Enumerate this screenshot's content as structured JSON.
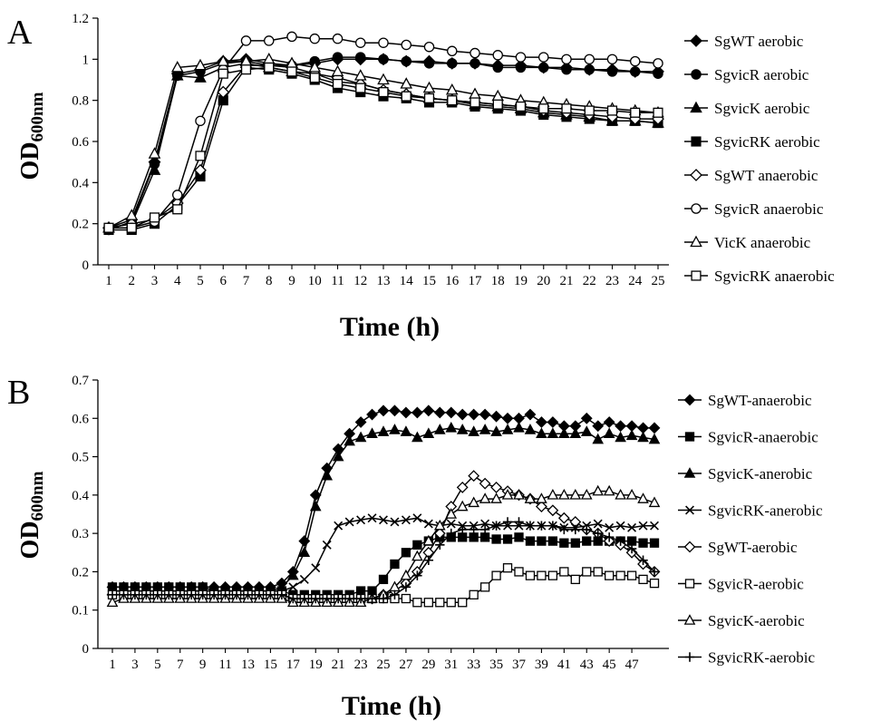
{
  "chart_data": [
    {
      "panel": "A",
      "type": "line",
      "xlabel": "Time (h)",
      "ylabel_main": "OD",
      "ylabel_sub": "600nm",
      "ylim": [
        0,
        1.2
      ],
      "yticks": [
        "0",
        "0.2",
        "0.4",
        "0.6",
        "0.8",
        "1",
        "1.2"
      ],
      "x": [
        1,
        2,
        3,
        4,
        5,
        6,
        7,
        8,
        9,
        10,
        11,
        12,
        13,
        14,
        15,
        16,
        17,
        18,
        19,
        20,
        21,
        22,
        23,
        24,
        25
      ],
      "xtick_labels": [
        "1",
        "2",
        "3",
        "4",
        "5",
        "6",
        "7",
        "8",
        "9",
        "10",
        "11",
        "12",
        "13",
        "14",
        "15",
        "16",
        "17",
        "18",
        "19",
        "20",
        "21",
        "22",
        "23",
        "24",
        "25"
      ],
      "grid": false,
      "legend_position": "right",
      "series": [
        {
          "name": "SgWT aerobic",
          "marker": "diamond-filled",
          "values": [
            0.18,
            0.22,
            0.5,
            0.93,
            0.95,
            0.99,
            1.0,
            0.98,
            0.97,
            0.98,
            1.0,
            1.0,
            1.0,
            0.99,
            0.99,
            0.98,
            0.98,
            0.97,
            0.97,
            0.96,
            0.96,
            0.95,
            0.95,
            0.94,
            0.94
          ]
        },
        {
          "name": "SgvicR aerobic",
          "marker": "circle-filled",
          "values": [
            0.17,
            0.21,
            0.49,
            0.92,
            0.94,
            0.98,
            0.99,
            0.97,
            0.97,
            0.99,
            1.01,
            1.01,
            1.0,
            0.99,
            0.98,
            0.98,
            0.98,
            0.96,
            0.96,
            0.96,
            0.95,
            0.95,
            0.94,
            0.94,
            0.93
          ]
        },
        {
          "name": "SgvicK aerobic",
          "marker": "triangle-filled",
          "values": [
            0.18,
            0.2,
            0.46,
            0.92,
            0.91,
            0.96,
            0.98,
            0.96,
            0.94,
            0.93,
            0.89,
            0.88,
            0.85,
            0.83,
            0.81,
            0.8,
            0.78,
            0.77,
            0.76,
            0.74,
            0.73,
            0.72,
            0.7,
            0.7,
            0.69
          ]
        },
        {
          "name": "SgvicRK aerobic",
          "marker": "square-filled",
          "values": [
            0.17,
            0.17,
            0.2,
            0.29,
            0.43,
            0.8,
            0.96,
            0.95,
            0.93,
            0.9,
            0.86,
            0.84,
            0.82,
            0.81,
            0.79,
            0.79,
            0.77,
            0.76,
            0.75,
            0.73,
            0.72,
            0.71,
            0.7,
            0.7,
            0.69
          ]
        },
        {
          "name": "SgWT anaerobic",
          "marker": "diamond-open",
          "values": [
            0.18,
            0.2,
            0.22,
            0.3,
            0.46,
            0.84,
            0.97,
            0.97,
            0.96,
            0.93,
            0.91,
            0.88,
            0.85,
            0.83,
            0.81,
            0.8,
            0.79,
            0.78,
            0.77,
            0.75,
            0.74,
            0.73,
            0.72,
            0.71,
            0.71
          ]
        },
        {
          "name": "SgvicR anaerobic",
          "marker": "circle-open",
          "values": [
            0.18,
            0.18,
            0.21,
            0.34,
            0.7,
            0.95,
            1.09,
            1.09,
            1.11,
            1.1,
            1.1,
            1.08,
            1.08,
            1.07,
            1.06,
            1.04,
            1.03,
            1.02,
            1.01,
            1.01,
            1.0,
            1.0,
            1.0,
            0.99,
            0.98
          ]
        },
        {
          "name": "VicK anaerobic",
          "marker": "triangle-open",
          "values": [
            0.18,
            0.24,
            0.54,
            0.96,
            0.97,
            0.99,
            0.99,
            1.0,
            0.98,
            0.96,
            0.94,
            0.92,
            0.9,
            0.88,
            0.86,
            0.85,
            0.83,
            0.82,
            0.8,
            0.79,
            0.78,
            0.77,
            0.76,
            0.75,
            0.74
          ]
        },
        {
          "name": "SgvicRK anaerobic",
          "marker": "square-open",
          "values": [
            0.18,
            0.18,
            0.23,
            0.27,
            0.53,
            0.93,
            0.95,
            0.96,
            0.94,
            0.91,
            0.88,
            0.86,
            0.84,
            0.82,
            0.81,
            0.8,
            0.79,
            0.78,
            0.77,
            0.76,
            0.76,
            0.75,
            0.75,
            0.74,
            0.74
          ]
        }
      ]
    },
    {
      "panel": "B",
      "type": "line",
      "xlabel": "Time (h)",
      "ylabel_main": "OD",
      "ylabel_sub": "600nm",
      "ylim": [
        0,
        0.7
      ],
      "yticks": [
        "0",
        "0.1",
        "0.2",
        "0.3",
        "0.4",
        "0.5",
        "0.6",
        "0.7"
      ],
      "x": [
        1,
        2,
        3,
        4,
        5,
        6,
        7,
        8,
        9,
        10,
        11,
        12,
        13,
        14,
        15,
        16,
        17,
        18,
        19,
        20,
        21,
        22,
        23,
        24,
        25,
        26,
        27,
        28,
        29,
        30,
        31,
        32,
        33,
        34,
        35,
        36,
        37,
        38,
        39,
        40,
        41,
        42,
        43,
        44,
        45,
        46,
        47,
        48,
        49
      ],
      "xtick_labels": [
        "1",
        "3",
        "5",
        "7",
        "9",
        "11",
        "13",
        "15",
        "17",
        "19",
        "21",
        "23",
        "25",
        "27",
        "29",
        "31",
        "33",
        "35",
        "37",
        "39",
        "41",
        "43",
        "45",
        "47"
      ],
      "grid": false,
      "legend_position": "right",
      "series": [
        {
          "name": "SgWT-anaerobic",
          "marker": "diamond-filled",
          "values": [
            0.16,
            0.16,
            0.16,
            0.16,
            0.16,
            0.16,
            0.16,
            0.16,
            0.16,
            0.16,
            0.16,
            0.16,
            0.16,
            0.16,
            0.16,
            0.17,
            0.2,
            0.28,
            0.4,
            0.47,
            0.52,
            0.56,
            0.59,
            0.61,
            0.62,
            0.62,
            0.615,
            0.615,
            0.62,
            0.615,
            0.615,
            0.61,
            0.61,
            0.61,
            0.605,
            0.6,
            0.6,
            0.61,
            0.59,
            0.59,
            0.58,
            0.58,
            0.6,
            0.58,
            0.59,
            0.58,
            0.58,
            0.575,
            0.575
          ]
        },
        {
          "name": "SgvicR-anaerobic",
          "marker": "square-filled",
          "values": [
            0.16,
            0.16,
            0.16,
            0.16,
            0.16,
            0.16,
            0.16,
            0.16,
            0.16,
            0.15,
            0.15,
            0.15,
            0.15,
            0.15,
            0.15,
            0.15,
            0.14,
            0.14,
            0.14,
            0.14,
            0.14,
            0.14,
            0.15,
            0.15,
            0.18,
            0.22,
            0.25,
            0.27,
            0.28,
            0.29,
            0.29,
            0.29,
            0.29,
            0.29,
            0.285,
            0.285,
            0.29,
            0.28,
            0.28,
            0.28,
            0.275,
            0.275,
            0.28,
            0.28,
            0.28,
            0.28,
            0.28,
            0.275,
            0.275
          ]
        },
        {
          "name": "SgvicK-anerobic",
          "marker": "triangle-filled",
          "values": [
            0.15,
            0.15,
            0.15,
            0.15,
            0.15,
            0.15,
            0.15,
            0.15,
            0.15,
            0.15,
            0.15,
            0.15,
            0.15,
            0.15,
            0.15,
            0.16,
            0.19,
            0.25,
            0.37,
            0.45,
            0.5,
            0.54,
            0.55,
            0.56,
            0.565,
            0.57,
            0.565,
            0.55,
            0.56,
            0.57,
            0.575,
            0.57,
            0.565,
            0.57,
            0.565,
            0.57,
            0.575,
            0.57,
            0.56,
            0.56,
            0.56,
            0.56,
            0.565,
            0.545,
            0.56,
            0.55,
            0.555,
            0.55,
            0.545
          ]
        },
        {
          "name": "SgvicRK-anerobic",
          "marker": "x",
          "values": [
            0.15,
            0.15,
            0.15,
            0.15,
            0.15,
            0.15,
            0.15,
            0.15,
            0.15,
            0.15,
            0.15,
            0.15,
            0.15,
            0.15,
            0.15,
            0.15,
            0.16,
            0.18,
            0.21,
            0.27,
            0.32,
            0.33,
            0.335,
            0.34,
            0.335,
            0.33,
            0.335,
            0.34,
            0.325,
            0.32,
            0.325,
            0.32,
            0.32,
            0.325,
            0.32,
            0.32,
            0.32,
            0.32,
            0.32,
            0.32,
            0.315,
            0.315,
            0.32,
            0.325,
            0.315,
            0.32,
            0.315,
            0.32,
            0.32
          ]
        },
        {
          "name": "SgWT-aerobic",
          "marker": "diamond-open",
          "values": [
            0.14,
            0.14,
            0.14,
            0.14,
            0.14,
            0.14,
            0.14,
            0.14,
            0.14,
            0.14,
            0.14,
            0.14,
            0.14,
            0.14,
            0.14,
            0.14,
            0.13,
            0.13,
            0.13,
            0.13,
            0.13,
            0.13,
            0.13,
            0.13,
            0.14,
            0.15,
            0.17,
            0.2,
            0.25,
            0.3,
            0.37,
            0.42,
            0.45,
            0.43,
            0.42,
            0.41,
            0.4,
            0.39,
            0.37,
            0.36,
            0.34,
            0.33,
            0.31,
            0.3,
            0.28,
            0.27,
            0.25,
            0.22,
            0.2
          ]
        },
        {
          "name": "SgvicR-aerobic",
          "marker": "square-open",
          "values": [
            0.14,
            0.14,
            0.14,
            0.14,
            0.14,
            0.14,
            0.14,
            0.14,
            0.14,
            0.14,
            0.14,
            0.14,
            0.14,
            0.14,
            0.14,
            0.14,
            0.13,
            0.13,
            0.13,
            0.13,
            0.13,
            0.13,
            0.13,
            0.13,
            0.13,
            0.13,
            0.13,
            0.12,
            0.12,
            0.12,
            0.12,
            0.12,
            0.14,
            0.16,
            0.19,
            0.21,
            0.2,
            0.19,
            0.19,
            0.19,
            0.2,
            0.18,
            0.2,
            0.2,
            0.19,
            0.19,
            0.19,
            0.18,
            0.17
          ]
        },
        {
          "name": "SgvicK-aerobic",
          "marker": "triangle-open",
          "values": [
            0.12,
            0.13,
            0.13,
            0.13,
            0.13,
            0.13,
            0.13,
            0.13,
            0.13,
            0.13,
            0.13,
            0.13,
            0.13,
            0.13,
            0.13,
            0.13,
            0.12,
            0.12,
            0.12,
            0.12,
            0.12,
            0.12,
            0.12,
            0.13,
            0.14,
            0.16,
            0.19,
            0.24,
            0.28,
            0.32,
            0.35,
            0.37,
            0.38,
            0.39,
            0.39,
            0.4,
            0.4,
            0.39,
            0.39,
            0.4,
            0.4,
            0.4,
            0.4,
            0.41,
            0.41,
            0.4,
            0.4,
            0.39,
            0.38
          ]
        },
        {
          "name": "SgvicRK-aerobic",
          "marker": "plus",
          "values": [
            0.14,
            0.14,
            0.14,
            0.14,
            0.14,
            0.14,
            0.14,
            0.14,
            0.14,
            0.14,
            0.14,
            0.14,
            0.14,
            0.14,
            0.14,
            0.14,
            0.13,
            0.13,
            0.13,
            0.13,
            0.13,
            0.13,
            0.13,
            0.13,
            0.13,
            0.14,
            0.16,
            0.19,
            0.23,
            0.27,
            0.3,
            0.31,
            0.31,
            0.31,
            0.32,
            0.33,
            0.33,
            0.32,
            0.32,
            0.32,
            0.31,
            0.31,
            0.31,
            0.3,
            0.29,
            0.28,
            0.26,
            0.23,
            0.2
          ]
        }
      ]
    }
  ]
}
